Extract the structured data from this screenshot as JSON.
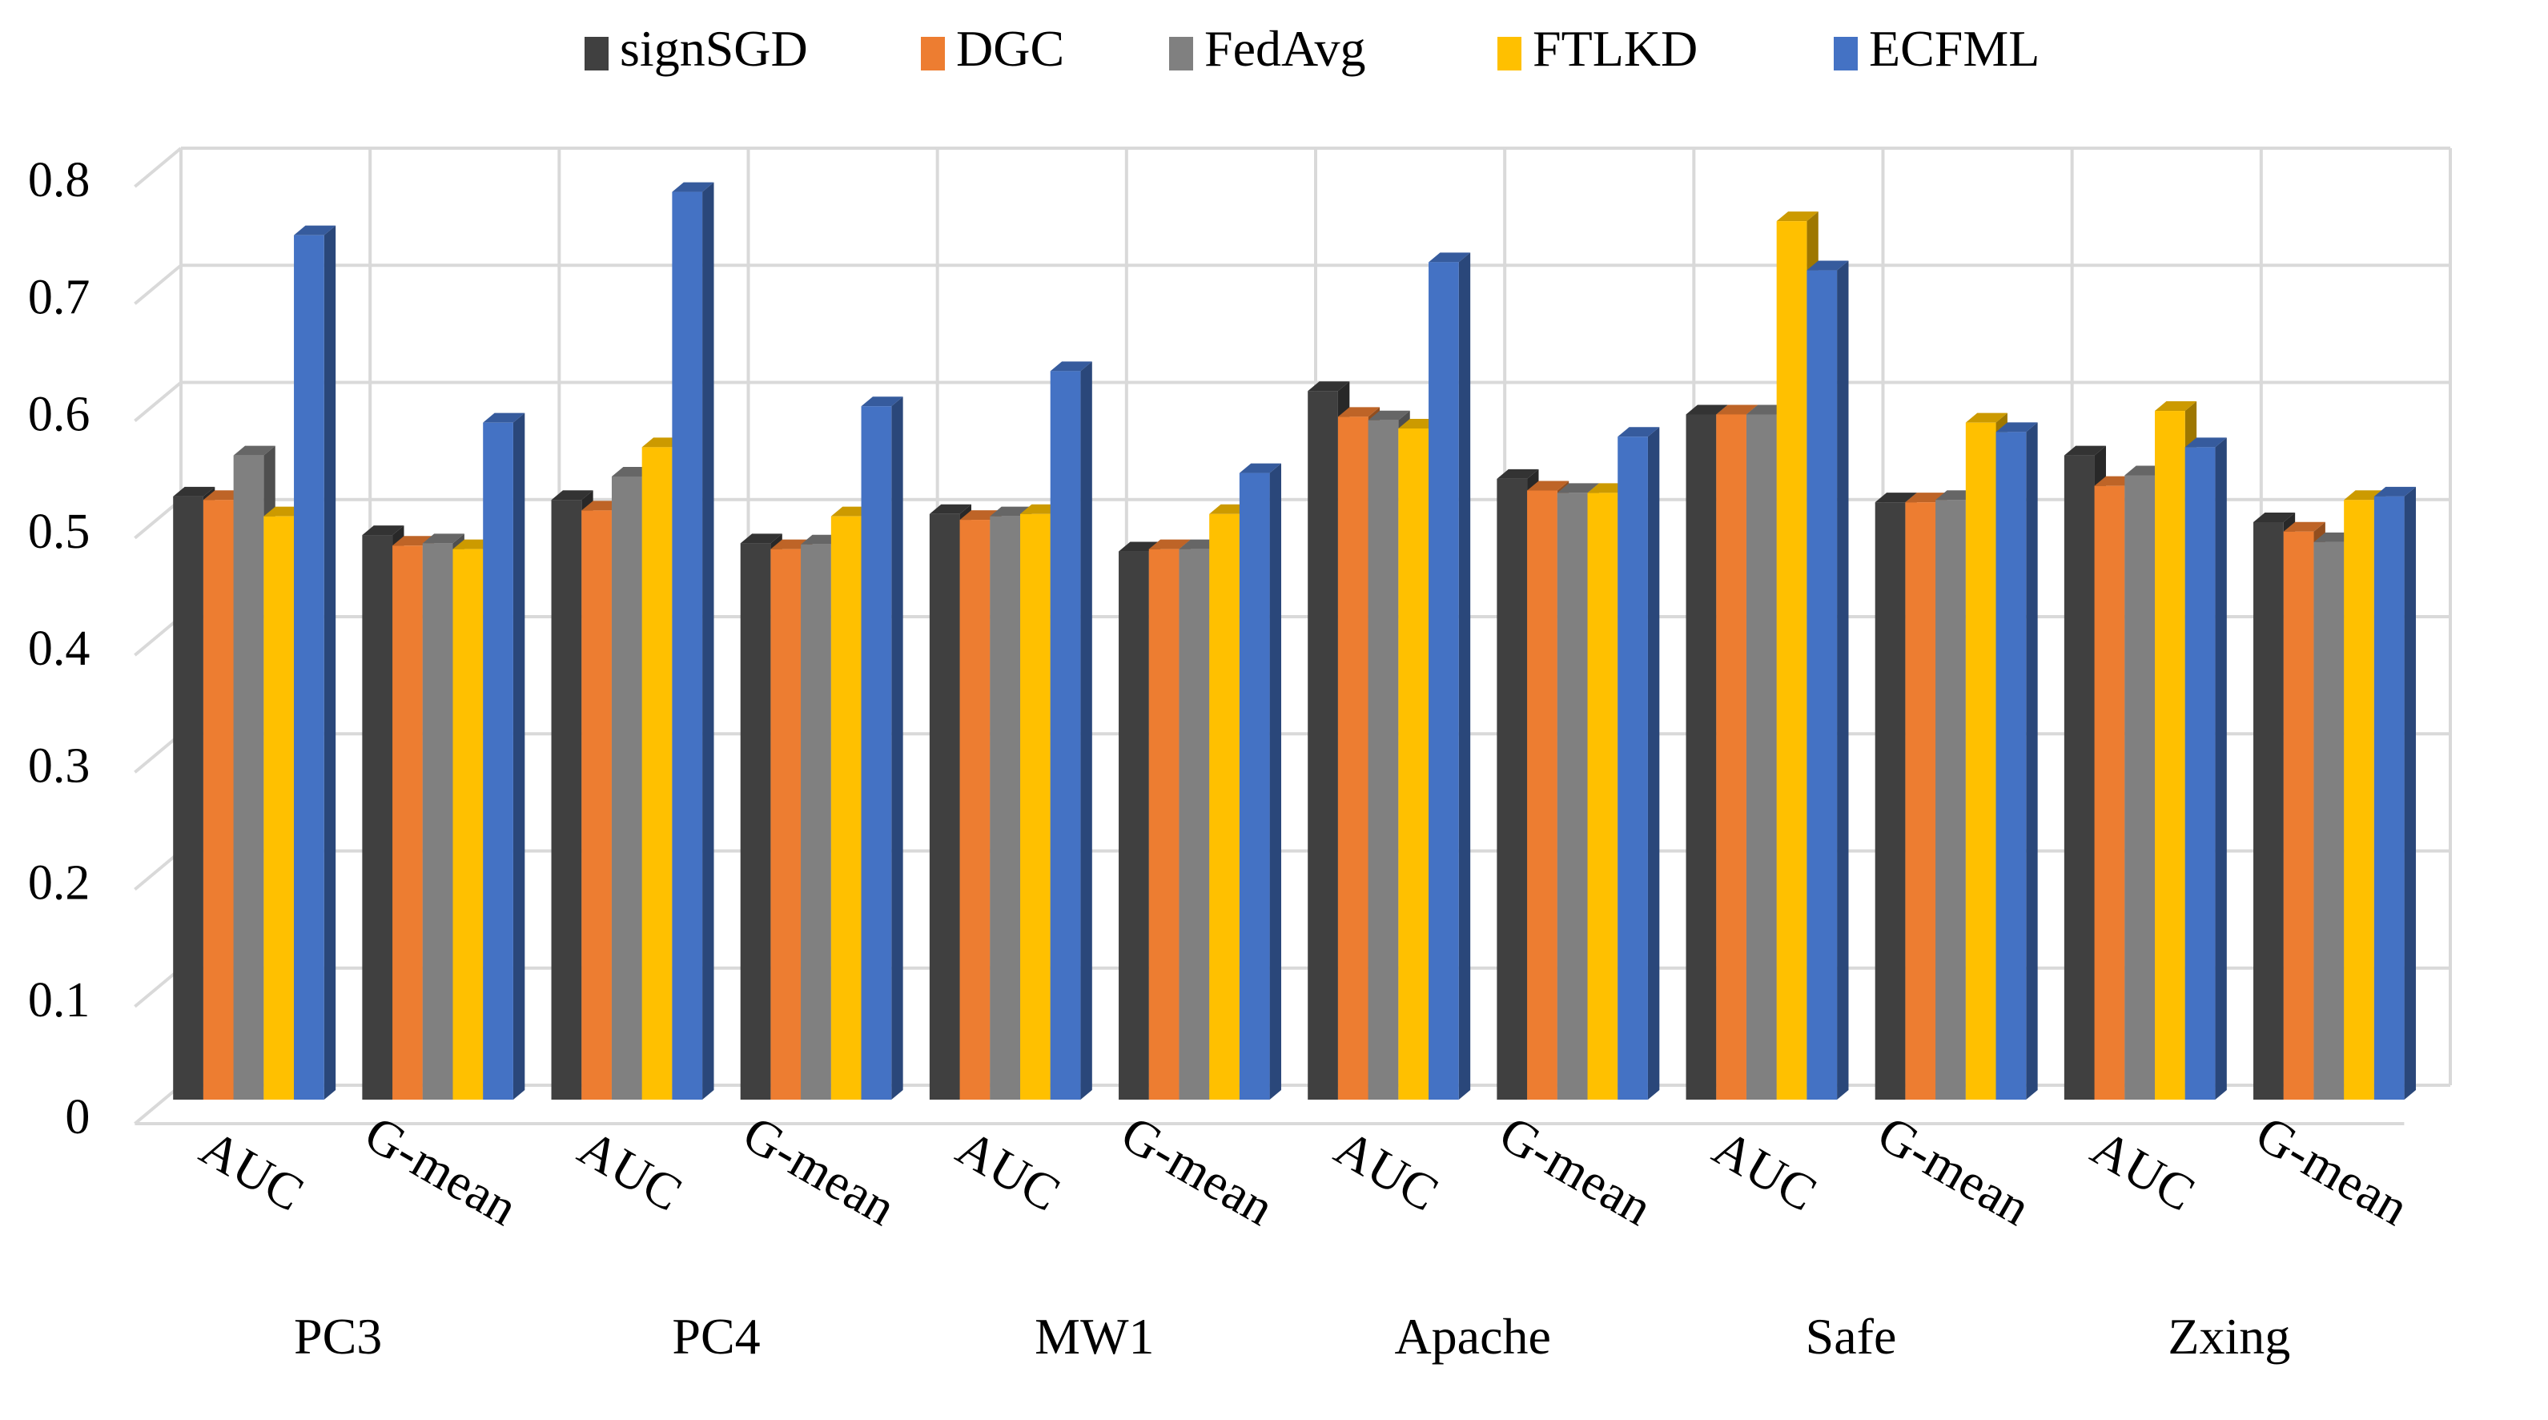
{
  "chart_data": {
    "type": "bar",
    "title": "",
    "xlabel": "",
    "ylabel": "",
    "ylim": [
      0,
      0.8
    ],
    "yticks": [
      "0",
      "0.1",
      "0.2",
      "0.3",
      "0.4",
      "0.5",
      "0.6",
      "0.7",
      "0.8"
    ],
    "ytick_values": [
      0,
      0.1,
      0.2,
      0.3,
      0.4,
      0.5,
      0.6,
      0.7,
      0.8
    ],
    "grid": true,
    "legend_position": "top",
    "categories": [
      "AUC",
      "G-mean",
      "AUC",
      "G-mean",
      "AUC",
      "G-mean",
      "AUC",
      "G-mean",
      "AUC",
      "G-mean",
      "AUC",
      "G-mean"
    ],
    "groups": [
      "PC3",
      "PC4",
      "MW1",
      "Apache",
      "Safe",
      "Zxing"
    ],
    "series": [
      {
        "name": "signSGD",
        "color": "#404040",
        "values": [
          0.515,
          0.482,
          0.512,
          0.475,
          0.5,
          0.468,
          0.605,
          0.53,
          0.585,
          0.51,
          0.55,
          0.493
        ]
      },
      {
        "name": "DGC",
        "color": "#ED7D31",
        "values": [
          0.512,
          0.473,
          0.503,
          0.47,
          0.495,
          0.47,
          0.583,
          0.52,
          0.585,
          0.51,
          0.524,
          0.485
        ]
      },
      {
        "name": "FedAvg",
        "color": "#808080",
        "values": [
          0.55,
          0.475,
          0.532,
          0.474,
          0.498,
          0.47,
          0.58,
          0.518,
          0.585,
          0.512,
          0.533,
          0.476
        ]
      },
      {
        "name": "FTLKD",
        "color": "#FFC000",
        "values": [
          0.498,
          0.47,
          0.557,
          0.498,
          0.5,
          0.5,
          0.573,
          0.518,
          0.75,
          0.578,
          0.588,
          0.512
        ]
      },
      {
        "name": "ECFML",
        "color": "#4472C4",
        "values": [
          0.738,
          0.578,
          0.775,
          0.592,
          0.622,
          0.535,
          0.715,
          0.566,
          0.708,
          0.57,
          0.557,
          0.515
        ]
      }
    ]
  }
}
